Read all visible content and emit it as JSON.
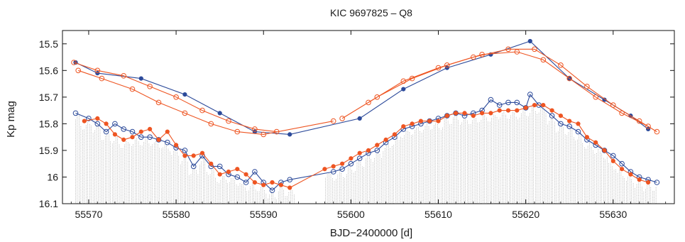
{
  "chart_data": {
    "type": "line",
    "title": "KIC 9697825 – Q8",
    "xlabel": "BJD−2400000 [d]",
    "ylabel": "Kp mag",
    "xlim": [
      55567,
      55637
    ],
    "ylim": [
      16.1,
      15.45
    ],
    "y_inverted": true,
    "xticks": [
      55570,
      55580,
      55590,
      55600,
      55610,
      55620,
      55630
    ],
    "yticks": [
      15.5,
      15.6,
      15.7,
      15.8,
      15.9,
      16,
      16.1
    ],
    "ytick_labels": [
      "15.5",
      "15.6",
      "15.7",
      "15.8",
      "15.9",
      "16",
      "16.1"
    ],
    "grid": false,
    "colors": {
      "blue": "#2c4a9a",
      "red": "#ee5522",
      "vertical_lines": "#777777"
    },
    "data_gap": [
      55594,
      55597
    ],
    "series": [
      {
        "style": "blue-filled-line",
        "points": [
          [
            55568.5,
            15.57
          ],
          [
            55571,
            15.61
          ],
          [
            55576,
            15.63
          ],
          [
            55581,
            15.69
          ],
          [
            55585,
            15.76
          ],
          [
            55589,
            15.83
          ],
          [
            55593,
            15.84
          ],
          [
            55601,
            15.78
          ],
          [
            55606,
            15.67
          ],
          [
            55611,
            15.59
          ],
          [
            55616,
            15.54
          ],
          [
            55620.5,
            15.49
          ],
          [
            55625,
            15.63
          ],
          [
            55629,
            15.71
          ],
          [
            55632,
            15.77
          ],
          [
            55634,
            15.82
          ]
        ]
      },
      {
        "style": "red-open-lines",
        "points": [
          [
            55568.3,
            15.57
          ],
          [
            55571,
            15.6
          ],
          [
            55574,
            15.62
          ],
          [
            55577,
            15.66
          ],
          [
            55580,
            15.7
          ],
          [
            55583,
            15.75
          ],
          [
            55586,
            15.79
          ],
          [
            55589,
            15.82
          ],
          [
            55591.5,
            15.83
          ],
          [
            55568.8,
            15.6
          ],
          [
            55571.5,
            15.63
          ],
          [
            55575,
            15.67
          ],
          [
            55578,
            15.72
          ],
          [
            55581,
            15.76
          ],
          [
            55584,
            15.8
          ],
          [
            55587,
            15.83
          ],
          [
            55590,
            15.84
          ],
          [
            55598,
            15.79
          ],
          [
            55602,
            15.72
          ],
          [
            55606,
            15.64
          ],
          [
            55610,
            15.59
          ],
          [
            55614,
            15.55
          ],
          [
            55618,
            15.52
          ],
          [
            55621,
            15.52
          ],
          [
            55624,
            15.58
          ],
          [
            55627,
            15.66
          ],
          [
            55630,
            15.73
          ],
          [
            55633,
            15.79
          ],
          [
            55635,
            15.83
          ],
          [
            55599,
            15.78
          ],
          [
            55603,
            15.7
          ],
          [
            55607,
            15.63
          ],
          [
            55611,
            15.58
          ],
          [
            55615,
            15.54
          ],
          [
            55619,
            15.53
          ],
          [
            55622,
            15.56
          ],
          [
            55625,
            15.63
          ],
          [
            55628,
            15.7
          ],
          [
            55631,
            15.76
          ],
          [
            55634,
            15.81
          ]
        ]
      },
      {
        "style": "blue-open-line",
        "points": [
          [
            55568.5,
            15.76
          ],
          [
            55570,
            15.78
          ],
          [
            55571,
            15.8
          ],
          [
            55572,
            15.83
          ],
          [
            55573,
            15.8
          ],
          [
            55574,
            15.82
          ],
          [
            55575,
            15.83
          ],
          [
            55576,
            15.85
          ],
          [
            55577,
            15.85
          ],
          [
            55578,
            15.86
          ],
          [
            55579,
            15.87
          ],
          [
            55580,
            15.89
          ],
          [
            55581,
            15.9
          ],
          [
            55582,
            15.96
          ],
          [
            55583,
            15.92
          ],
          [
            55584,
            15.96
          ],
          [
            55585,
            15.96
          ],
          [
            55586,
            15.99
          ],
          [
            55587,
            16.0
          ],
          [
            55588,
            16.02
          ],
          [
            55589,
            15.98
          ],
          [
            55590,
            16.02
          ],
          [
            55591,
            16.05
          ],
          [
            55592,
            16.02
          ],
          [
            55593,
            16.01
          ],
          [
            55598,
            15.98
          ],
          [
            55599,
            15.97
          ],
          [
            55600,
            15.95
          ],
          [
            55601,
            15.93
          ],
          [
            55602,
            15.91
          ],
          [
            55603,
            15.9
          ],
          [
            55604,
            15.87
          ],
          [
            55605,
            15.85
          ],
          [
            55606,
            15.82
          ],
          [
            55607,
            15.81
          ],
          [
            55608,
            15.8
          ],
          [
            55609,
            15.79
          ],
          [
            55610,
            15.78
          ],
          [
            55611,
            15.77
          ],
          [
            55612,
            15.76
          ],
          [
            55613,
            15.77
          ],
          [
            55614,
            15.76
          ],
          [
            55615,
            15.75
          ],
          [
            55616,
            15.71
          ],
          [
            55617,
            15.73
          ],
          [
            55618,
            15.72
          ],
          [
            55619,
            15.72
          ],
          [
            55620,
            15.74
          ],
          [
            55620.5,
            15.69
          ],
          [
            55621.5,
            15.73
          ],
          [
            55623,
            15.77
          ],
          [
            55624,
            15.8
          ],
          [
            55625,
            15.81
          ],
          [
            55626,
            15.83
          ],
          [
            55627,
            15.86
          ],
          [
            55628,
            15.88
          ],
          [
            55629,
            15.9
          ],
          [
            55630,
            15.92
          ],
          [
            55631,
            15.95
          ],
          [
            55632,
            15.98
          ],
          [
            55633,
            16.0
          ],
          [
            55634,
            16.01
          ],
          [
            55635,
            16.02
          ]
        ]
      },
      {
        "style": "red-filled-line",
        "points": [
          [
            55569.5,
            15.79
          ],
          [
            55571,
            15.78
          ],
          [
            55572,
            15.8
          ],
          [
            55573,
            15.84
          ],
          [
            55574,
            15.86
          ],
          [
            55575,
            15.85
          ],
          [
            55576,
            15.83
          ],
          [
            55577,
            15.82
          ],
          [
            55578,
            15.86
          ],
          [
            55579,
            15.83
          ],
          [
            55580,
            15.88
          ],
          [
            55581,
            15.92
          ],
          [
            55582,
            15.92
          ],
          [
            55583,
            15.91
          ],
          [
            55584,
            15.95
          ],
          [
            55585,
            15.99
          ],
          [
            55586,
            15.98
          ],
          [
            55587,
            15.97
          ],
          [
            55588,
            15.99
          ],
          [
            55589,
            16.02
          ],
          [
            55590,
            16.03
          ],
          [
            55591,
            16.02
          ],
          [
            55592,
            16.03
          ],
          [
            55593,
            16.04
          ],
          [
            55597,
            15.97
          ],
          [
            55598,
            15.96
          ],
          [
            55599,
            15.95
          ],
          [
            55600,
            15.93
          ],
          [
            55601,
            15.91
          ],
          [
            55602,
            15.9
          ],
          [
            55603,
            15.88
          ],
          [
            55604,
            15.86
          ],
          [
            55605,
            15.84
          ],
          [
            55606,
            15.81
          ],
          [
            55607,
            15.8
          ],
          [
            55608,
            15.79
          ],
          [
            55609,
            15.79
          ],
          [
            55610,
            15.79
          ],
          [
            55611,
            15.77
          ],
          [
            55612,
            15.76
          ],
          [
            55613,
            15.76
          ],
          [
            55614,
            15.77
          ],
          [
            55615,
            15.76
          ],
          [
            55616,
            15.76
          ],
          [
            55617,
            15.75
          ],
          [
            55618,
            15.75
          ],
          [
            55619,
            15.75
          ],
          [
            55620,
            15.74
          ],
          [
            55621,
            15.73
          ],
          [
            55622,
            15.73
          ],
          [
            55623,
            15.75
          ],
          [
            55624,
            15.77
          ],
          [
            55625,
            15.79
          ],
          [
            55626,
            15.8
          ],
          [
            55627,
            15.85
          ],
          [
            55628,
            15.87
          ],
          [
            55629,
            15.9
          ],
          [
            55630,
            15.94
          ],
          [
            55631,
            15.97
          ],
          [
            55632,
            15.99
          ],
          [
            55633,
            16.01
          ],
          [
            55634,
            16.02
          ]
        ]
      }
    ]
  }
}
